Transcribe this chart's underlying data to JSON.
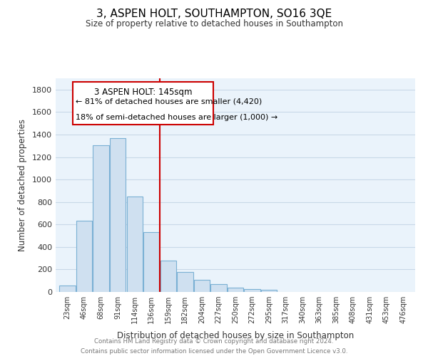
{
  "title": "3, ASPEN HOLT, SOUTHAMPTON, SO16 3QE",
  "subtitle": "Size of property relative to detached houses in Southampton",
  "xlabel": "Distribution of detached houses by size in Southampton",
  "ylabel": "Number of detached properties",
  "categories": [
    "23sqm",
    "46sqm",
    "68sqm",
    "91sqm",
    "114sqm",
    "136sqm",
    "159sqm",
    "182sqm",
    "204sqm",
    "227sqm",
    "250sqm",
    "272sqm",
    "295sqm",
    "317sqm",
    "340sqm",
    "363sqm",
    "385sqm",
    "408sqm",
    "431sqm",
    "453sqm",
    "476sqm"
  ],
  "values": [
    55,
    635,
    1305,
    1370,
    850,
    530,
    280,
    180,
    105,
    68,
    35,
    25,
    20,
    0,
    0,
    0,
    0,
    0,
    0,
    0,
    0
  ],
  "bar_color": "#cfe0f0",
  "bar_edge_color": "#7ab0d4",
  "vline_x": 5.5,
  "vline_color": "#cc0000",
  "annotation_title": "3 ASPEN HOLT: 145sqm",
  "annotation_line1": "← 81% of detached houses are smaller (4,420)",
  "annotation_line2": "18% of semi-detached houses are larger (1,000) →",
  "annotation_box_color": "#ffffff",
  "annotation_box_edge": "#cc0000",
  "ylim": [
    0,
    1900
  ],
  "yticks": [
    0,
    200,
    400,
    600,
    800,
    1000,
    1200,
    1400,
    1600,
    1800
  ],
  "footer_line1": "Contains HM Land Registry data © Crown copyright and database right 2024.",
  "footer_line2": "Contains public sector information licensed under the Open Government Licence v3.0.",
  "bg_color": "#ffffff",
  "grid_color": "#c8d8e8",
  "plot_bg_color": "#eaf3fb"
}
